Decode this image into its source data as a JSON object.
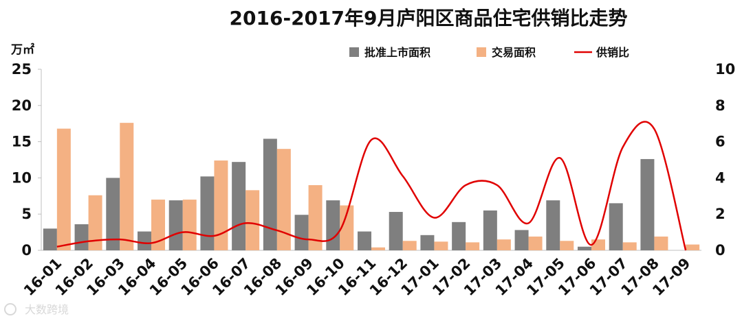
{
  "watermark": "大数跨境",
  "chart_data": {
    "type": "bar",
    "title": "2016-2017年9月庐阳区商品住宅供销比走势",
    "y_left_unit": "万㎡",
    "y_left_lim": [
      0,
      25
    ],
    "y_left_ticks": [
      "0",
      "5",
      "10",
      "15",
      "20",
      "25"
    ],
    "y_right_lim": [
      0,
      10
    ],
    "y_right_ticks": [
      "0",
      "2",
      "4",
      "6",
      "8",
      "10"
    ],
    "legend_position": "top-right",
    "categories": [
      "16-01",
      "16-02",
      "16-03",
      "16-04",
      "16-05",
      "16-06",
      "16-07",
      "16-08",
      "16-09",
      "16-10",
      "16-11",
      "16-12",
      "17-01",
      "17-02",
      "17-03",
      "17-04",
      "17-05",
      "17-06",
      "17-07",
      "17-08",
      "17-09"
    ],
    "series": [
      {
        "name": "批准上市面积",
        "type": "bar",
        "axis": "left",
        "color": "#7f7f7f",
        "values": [
          3.0,
          3.6,
          10.0,
          2.6,
          6.9,
          10.2,
          12.2,
          15.4,
          4.9,
          6.9,
          2.6,
          5.3,
          2.1,
          3.9,
          5.5,
          2.8,
          6.9,
          0.5,
          6.5,
          12.6,
          0
        ]
      },
      {
        "name": "交易面积",
        "type": "bar",
        "axis": "left",
        "color": "#f4b183",
        "values": [
          16.8,
          7.6,
          17.6,
          7.0,
          7.0,
          12.4,
          8.3,
          14.0,
          9.0,
          6.2,
          0.4,
          1.3,
          1.2,
          1.1,
          1.5,
          1.9,
          1.3,
          1.5,
          1.1,
          1.9,
          0.8
        ]
      },
      {
        "name": "供销比",
        "type": "line",
        "axis": "right",
        "color": "#e00000",
        "values": [
          0.2,
          0.5,
          0.6,
          0.4,
          1.0,
          0.8,
          1.5,
          1.1,
          0.6,
          1.1,
          6.1,
          4.1,
          1.8,
          3.6,
          3.6,
          1.5,
          5.1,
          0.3,
          5.7,
          6.7,
          0
        ]
      }
    ]
  }
}
